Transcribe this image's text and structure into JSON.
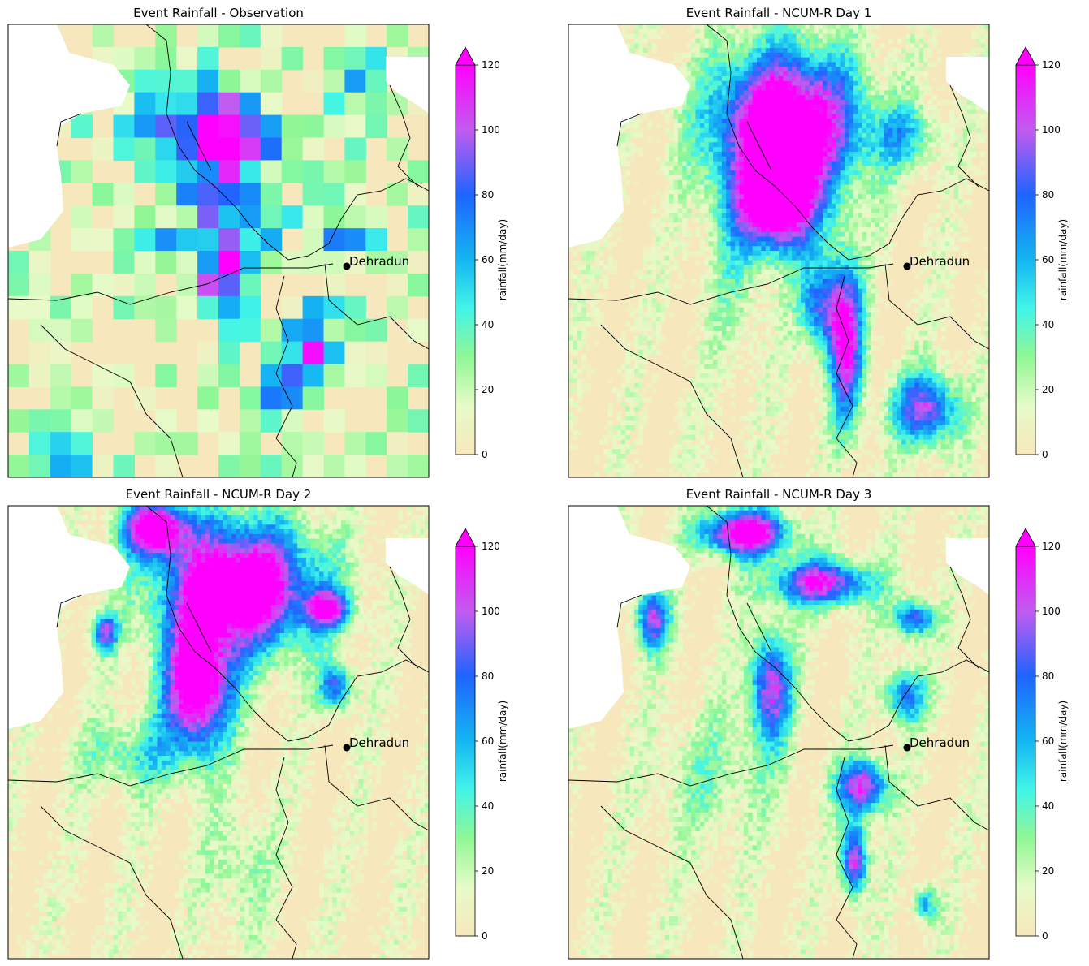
{
  "chart_data": [
    {
      "type": "heatmap",
      "title": "Event Rainfall - Observation",
      "grid_resolution": "coarse",
      "city": {
        "name": "Dehradun"
      },
      "colorbar": {
        "label": "rainfall(mm/day)",
        "ticks": [
          0,
          20,
          40,
          60,
          80,
          100,
          120
        ],
        "range": [
          0,
          120
        ],
        "extend": "max"
      },
      "pattern": {
        "seed": 11,
        "blobs": [
          [
            0.48,
            0.25,
            0.16,
            0.12,
            115
          ],
          [
            0.52,
            0.52,
            0.09,
            0.12,
            105
          ],
          [
            0.72,
            0.72,
            0.07,
            0.08,
            95
          ],
          [
            0.62,
            0.82,
            0.05,
            0.05,
            80
          ],
          [
            0.35,
            0.5,
            0.03,
            0.03,
            95
          ],
          [
            0.8,
            0.45,
            0.1,
            0.07,
            50
          ],
          [
            0.15,
            0.95,
            0.08,
            0.04,
            45
          ],
          [
            0.85,
            0.12,
            0.07,
            0.06,
            40
          ]
        ]
      }
    },
    {
      "type": "heatmap",
      "title": "Event Rainfall - NCUM-R Day 1",
      "grid_resolution": "fine",
      "city": {
        "name": "Dehradun"
      },
      "colorbar": {
        "label": "rainfall(mm/day)",
        "ticks": [
          0,
          20,
          40,
          60,
          80,
          100,
          120
        ],
        "range": [
          0,
          120
        ],
        "extend": "max"
      },
      "pattern": {
        "seed": 23,
        "blobs": [
          [
            0.52,
            0.22,
            0.17,
            0.16,
            150
          ],
          [
            0.5,
            0.4,
            0.09,
            0.1,
            130
          ],
          [
            0.66,
            0.7,
            0.04,
            0.18,
            110
          ],
          [
            0.85,
            0.85,
            0.08,
            0.08,
            95
          ],
          [
            0.6,
            0.62,
            0.05,
            0.1,
            80
          ],
          [
            0.8,
            0.25,
            0.08,
            0.07,
            45
          ],
          [
            0.4,
            0.5,
            0.08,
            0.25,
            25
          ]
        ]
      }
    },
    {
      "type": "heatmap",
      "title": "Event Rainfall - NCUM-R Day 2",
      "grid_resolution": "fine",
      "city": {
        "name": "Dehradun"
      },
      "colorbar": {
        "label": "rainfall(mm/day)",
        "ticks": [
          0,
          20,
          40,
          60,
          80,
          100,
          120
        ],
        "range": [
          0,
          120
        ],
        "extend": "max"
      },
      "pattern": {
        "seed": 37,
        "blobs": [
          [
            0.55,
            0.18,
            0.18,
            0.14,
            150
          ],
          [
            0.45,
            0.4,
            0.08,
            0.14,
            140
          ],
          [
            0.35,
            0.05,
            0.08,
            0.06,
            130
          ],
          [
            0.76,
            0.23,
            0.05,
            0.04,
            100
          ],
          [
            0.78,
            0.4,
            0.04,
            0.05,
            80
          ],
          [
            0.23,
            0.28,
            0.03,
            0.04,
            90
          ],
          [
            0.3,
            0.55,
            0.12,
            0.08,
            40
          ],
          [
            0.55,
            0.8,
            0.08,
            0.14,
            25
          ]
        ]
      }
    },
    {
      "type": "heatmap",
      "title": "Event Rainfall - NCUM-R Day 3",
      "grid_resolution": "fine",
      "city": {
        "name": "Dehradun"
      },
      "colorbar": {
        "label": "rainfall(mm/day)",
        "ticks": [
          0,
          20,
          40,
          60,
          80,
          100,
          120
        ],
        "range": [
          0,
          120
        ],
        "extend": "max"
      },
      "pattern": {
        "seed": 51,
        "blobs": [
          [
            0.42,
            0.06,
            0.1,
            0.05,
            140
          ],
          [
            0.6,
            0.17,
            0.12,
            0.05,
            110
          ],
          [
            0.48,
            0.4,
            0.05,
            0.12,
            100
          ],
          [
            0.7,
            0.62,
            0.06,
            0.06,
            110
          ],
          [
            0.68,
            0.78,
            0.03,
            0.08,
            110
          ],
          [
            0.82,
            0.25,
            0.05,
            0.04,
            90
          ],
          [
            0.2,
            0.25,
            0.04,
            0.07,
            95
          ],
          [
            0.8,
            0.42,
            0.05,
            0.06,
            75
          ],
          [
            0.85,
            0.88,
            0.03,
            0.04,
            60
          ],
          [
            0.35,
            0.6,
            0.15,
            0.15,
            25
          ]
        ]
      }
    }
  ]
}
